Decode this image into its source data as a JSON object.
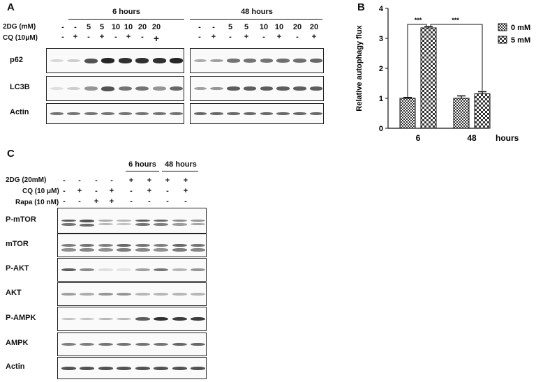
{
  "panels": {
    "a": "A",
    "b": "B",
    "c": "C"
  },
  "panelA": {
    "groups": [
      {
        "label": "6 hours"
      },
      {
        "label": "48 hours"
      }
    ],
    "row_labels": [
      "2DG (mM)",
      "CQ (10μM)"
    ],
    "twodg": [
      "-",
      "-",
      "5",
      "5",
      "10",
      "10",
      "20",
      "20"
    ],
    "cq_6h": [
      "-",
      "+",
      "-",
      "+",
      "-",
      "+",
      "-",
      "+"
    ],
    "cq_48h": [
      "-",
      "+",
      "-",
      "+",
      "-",
      "+",
      "-",
      "+"
    ],
    "blots": [
      {
        "name": "p62",
        "h6": [
          0.15,
          0.2,
          0.75,
          0.95,
          0.9,
          0.9,
          0.9,
          0.95
        ],
        "h48": [
          0.35,
          0.4,
          0.6,
          0.6,
          0.6,
          0.62,
          0.62,
          0.65
        ]
      },
      {
        "name": "LC3B",
        "h6": [
          0.12,
          0.2,
          0.45,
          0.75,
          0.6,
          0.6,
          0.45,
          0.65
        ],
        "h48": [
          0.4,
          0.45,
          0.7,
          0.7,
          0.7,
          0.7,
          0.7,
          0.7
        ]
      },
      {
        "name": "Actin",
        "h6": [
          0.6,
          0.6,
          0.6,
          0.6,
          0.6,
          0.6,
          0.6,
          0.6
        ],
        "h48": [
          0.65,
          0.65,
          0.65,
          0.65,
          0.65,
          0.65,
          0.65,
          0.65
        ]
      }
    ]
  },
  "chart_data": {
    "type": "bar",
    "categories": [
      "6",
      "48"
    ],
    "category_unit": "hours",
    "xlabel": "",
    "ylabel": "Relative autophagy flux",
    "ylim": [
      0,
      4
    ],
    "yticks": [
      "0",
      "1",
      "2",
      "3",
      "4"
    ],
    "series": [
      {
        "name": "0 mM",
        "values": [
          1.0,
          1.0
        ],
        "errors": [
          0.03,
          0.08
        ]
      },
      {
        "name": "5 mM",
        "values": [
          3.35,
          1.15
        ],
        "errors": [
          0.04,
          0.07
        ]
      }
    ],
    "significance": [
      "***",
      "***"
    ],
    "legend_position": "right",
    "grid": false
  },
  "panelC": {
    "groups": [
      {
        "label": "6 hours"
      },
      {
        "label": "48 hours"
      }
    ],
    "row_labels": [
      "2DG (20mM)",
      "CQ (10 μM)",
      "Rapa (10 nM)"
    ],
    "rows": [
      [
        "-",
        "-",
        "-",
        "-",
        "+",
        "+",
        "+",
        "+"
      ],
      [
        "-",
        "+",
        "-",
        "+",
        "-",
        "+",
        "-",
        "+"
      ],
      [
        "-",
        "-",
        "+",
        "+",
        "-",
        "-",
        "-",
        "-"
      ]
    ],
    "blots": [
      {
        "name": "P-mTOR",
        "lanes": [
          0.7,
          0.75,
          0.35,
          0.3,
          0.7,
          0.65,
          0.5,
          0.45
        ]
      },
      {
        "name": "mTOR",
        "lanes": [
          0.55,
          0.6,
          0.55,
          0.65,
          0.6,
          0.55,
          0.65,
          0.6
        ]
      },
      {
        "name": "P-AKT",
        "lanes": [
          0.7,
          0.5,
          0.12,
          0.1,
          0.4,
          0.6,
          0.3,
          0.45
        ]
      },
      {
        "name": "AKT",
        "lanes": [
          0.4,
          0.35,
          0.45,
          0.45,
          0.3,
          0.3,
          0.3,
          0.3
        ]
      },
      {
        "name": "P-AMPK",
        "lanes": [
          0.25,
          0.25,
          0.3,
          0.3,
          0.7,
          0.9,
          0.85,
          0.85
        ]
      },
      {
        "name": "AMPK",
        "lanes": [
          0.55,
          0.55,
          0.6,
          0.6,
          0.6,
          0.6,
          0.65,
          0.65
        ]
      },
      {
        "name": "Actin",
        "lanes": [
          0.75,
          0.75,
          0.75,
          0.75,
          0.75,
          0.75,
          0.75,
          0.75
        ]
      }
    ]
  }
}
